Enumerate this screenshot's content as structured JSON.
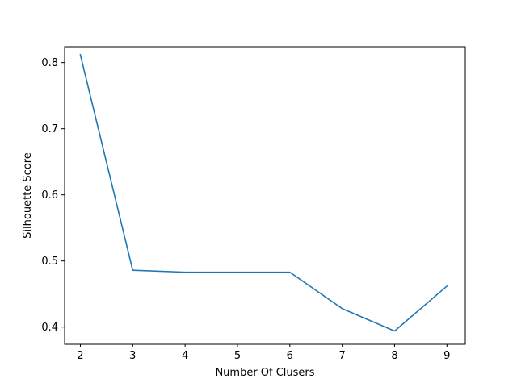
{
  "chart_data": {
    "type": "line",
    "title": "",
    "xlabel": "Number Of Clusers",
    "ylabel": "Silhouette Score",
    "x": [
      2,
      3,
      4,
      5,
      6,
      7,
      8,
      9
    ],
    "series": [
      {
        "values": [
          0.812,
          0.486,
          0.483,
          0.483,
          0.483,
          0.428,
          0.394,
          0.462
        ],
        "color": "#1f77b4"
      }
    ],
    "xlim": [
      1.7,
      9.35
    ],
    "ylim": [
      0.374,
      0.824
    ],
    "xticks": [
      2,
      3,
      4,
      5,
      6,
      7,
      8,
      9
    ],
    "xtick_labels": [
      "2",
      "3",
      "4",
      "5",
      "6",
      "7",
      "8",
      "9"
    ],
    "yticks": [
      0.4,
      0.5,
      0.6,
      0.7,
      0.8
    ],
    "ytick_labels": [
      "0.4",
      "0.5",
      "0.6",
      "0.7",
      "0.8"
    ],
    "grid": false,
    "legend": "none"
  }
}
